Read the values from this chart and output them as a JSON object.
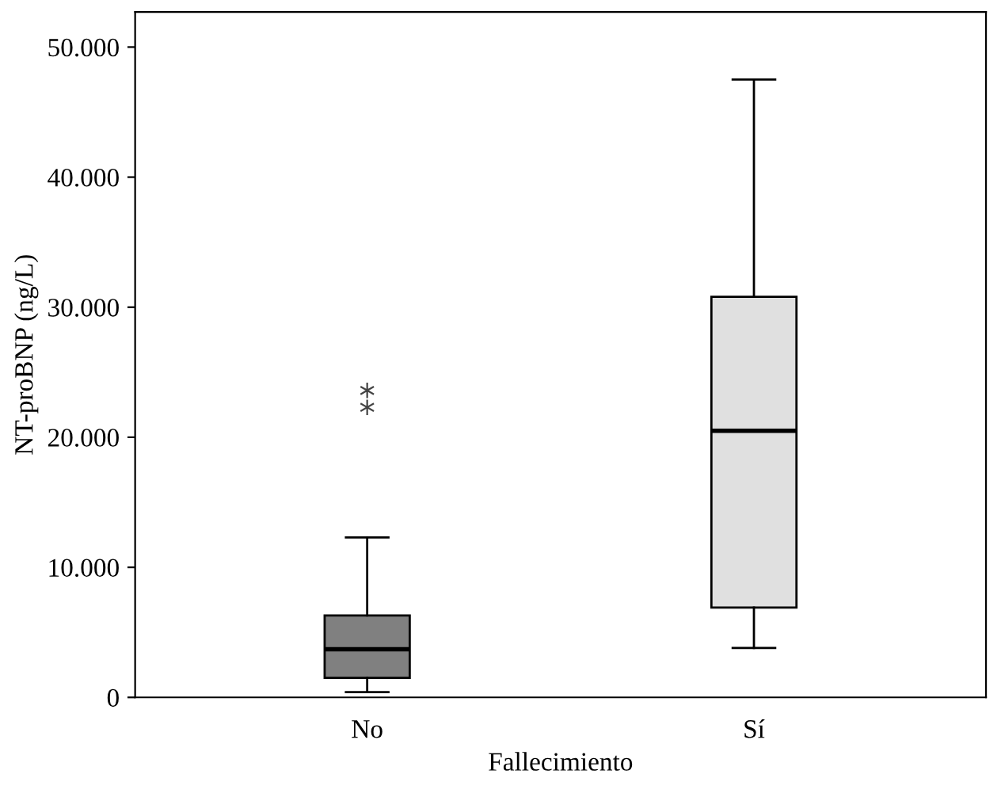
{
  "chart_data": {
    "type": "box",
    "xlabel": "Fallecimiento",
    "ylabel": "NT-proBNP (ng/L)",
    "categories": [
      "No",
      "Sí"
    ],
    "colors": [
      "#808080",
      "#e0e0e0"
    ],
    "boxes": [
      {
        "low": 400,
        "q1": 1500,
        "median": 3700,
        "q3": 6300,
        "high": 12300,
        "outliers": [
          22300,
          23600
        ]
      },
      {
        "low": 3800,
        "q1": 6900,
        "median": 20500,
        "q3": 30800,
        "high": 47500
      }
    ],
    "ylim": [
      0,
      52700
    ],
    "yticks": [
      0,
      {
        "value": 10000,
        "label": "10.000"
      },
      {
        "value": 20000,
        "label": "20.000"
      },
      {
        "value": 30000,
        "label": "30.000"
      },
      {
        "value": 40000,
        "label": "40.000"
      },
      {
        "value": 50000,
        "label": "50.000"
      }
    ],
    "grid": false,
    "legend": false,
    "marker": "cross"
  }
}
